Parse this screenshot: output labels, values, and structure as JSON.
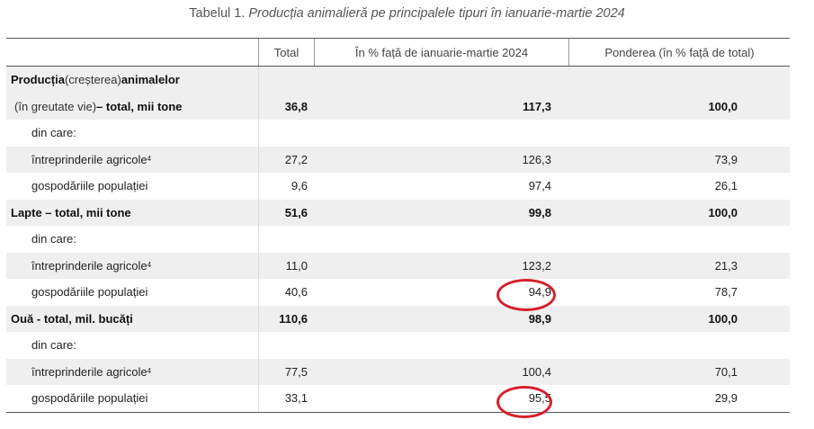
{
  "caption": {
    "prefix": "Tabelul 1.",
    "title": "Producția animalieră pe principalele tipuri în ianuarie-martie 2024"
  },
  "headers": {
    "col0": "",
    "col1": "Total",
    "col2": "În % față de ianuarie-martie 2024",
    "col3": "Ponderea (în % față de total)"
  },
  "rows": [
    {
      "label_a": "Producția ",
      "label_b": "(creșterea)",
      "label_c": "animalelor",
      "total": "",
      "pct": "",
      "share": ""
    },
    {
      "label_a": "(în greutate vie) ",
      "label_b": "– total, mii tone",
      "total": "36,8",
      "pct": "117,3",
      "share": "100,0"
    },
    {
      "label": "din care:",
      "total": "",
      "pct": "",
      "share": ""
    },
    {
      "label": "întreprinderile agricole",
      "sup": "4",
      "total": "27,2",
      "pct": "126,3",
      "share": "73,9"
    },
    {
      "label": "gospodăriile populației",
      "total": "9,6",
      "pct": "97,4",
      "share": "26,1"
    },
    {
      "label": "Lapte – total, mii tone",
      "total": "51,6",
      "pct": "99,8",
      "share": "100,0"
    },
    {
      "label": "din care:",
      "total": "",
      "pct": "",
      "share": ""
    },
    {
      "label": "întreprinderile agricole",
      "sup": "4",
      "total": "11,0",
      "pct": "123,2",
      "share": "21,3"
    },
    {
      "label": "gospodăriile populației",
      "total": "40,6",
      "pct": "94,9",
      "share": "78,7"
    },
    {
      "label": "Ouă - total, mil. bucăți",
      "total": "110,6",
      "pct": "98,9",
      "share": "100,0"
    },
    {
      "label": "din care:",
      "total": "",
      "pct": "",
      "share": ""
    },
    {
      "label": "întreprinderile agricole",
      "sup": "4",
      "total": "77,5",
      "pct": "100,4",
      "share": "70,1"
    },
    {
      "label": "gospodăriile populației",
      "total": "33,1",
      "pct": "95,5",
      "share": "29,9"
    }
  ],
  "highlight_color": "#d81e2c"
}
